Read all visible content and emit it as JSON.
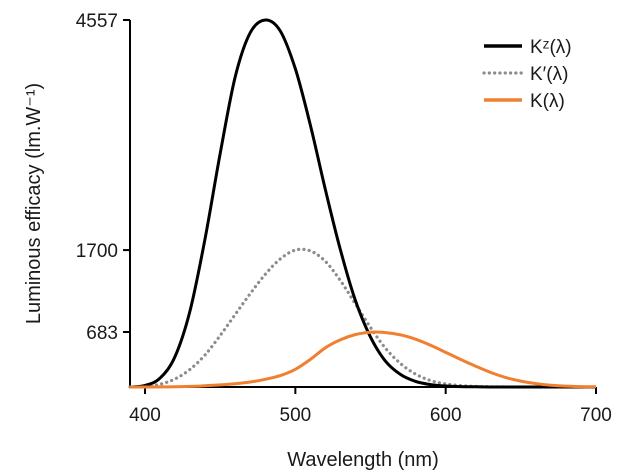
{
  "chart_data": {
    "type": "line",
    "title": "",
    "xlabel": "Wavelength (nm)",
    "ylabel": "Luminous efficacy (lm.W⁻¹)",
    "xlim": [
      390,
      700
    ],
    "ylim": [
      0,
      4557
    ],
    "xticks": [
      400,
      500,
      600,
      700
    ],
    "xtick_labels": [
      "400",
      "500",
      "600",
      "700"
    ],
    "yticks": [
      683,
      1700,
      4557
    ],
    "ytick_labels": [
      "683",
      "1700",
      "4557"
    ],
    "grid": false,
    "legend_position": "top-right",
    "x": [
      390,
      400,
      410,
      420,
      430,
      440,
      450,
      460,
      470,
      480,
      490,
      500,
      510,
      520,
      530,
      540,
      550,
      560,
      570,
      580,
      590,
      600,
      610,
      620,
      630,
      640,
      650,
      660,
      670,
      680,
      690,
      700
    ],
    "series": [
      {
        "name": "Kᶻ(λ)",
        "color": "#000000",
        "style": "solid",
        "values": [
          0,
          20,
          110,
          380,
          950,
          1850,
          2900,
          3850,
          4400,
          4557,
          4420,
          3950,
          3250,
          2450,
          1700,
          1070,
          620,
          320,
          155,
          70,
          30,
          12,
          5,
          2,
          0,
          0,
          0,
          0,
          0,
          0,
          0,
          0
        ]
      },
      {
        "name": "K′(λ)",
        "color": "#8c8c8c",
        "style": "dotted",
        "values": [
          0,
          8,
          35,
          100,
          220,
          400,
          640,
          900,
          1160,
          1400,
          1590,
          1700,
          1690,
          1560,
          1320,
          1030,
          740,
          480,
          290,
          160,
          80,
          38,
          17,
          7,
          3,
          1,
          0,
          0,
          0,
          0,
          0,
          0
        ]
      },
      {
        "name": "K(λ)",
        "color": "#f08030",
        "style": "solid",
        "values": [
          0,
          0,
          1,
          3,
          8,
          16,
          26,
          41,
          62,
          95,
          142,
          220,
          343,
          487,
          586,
          652,
          680,
          676,
          647,
          593,
          518,
          430,
          342,
          258,
          180,
          117,
          73,
          42,
          22,
          11,
          5,
          2
        ]
      }
    ]
  }
}
